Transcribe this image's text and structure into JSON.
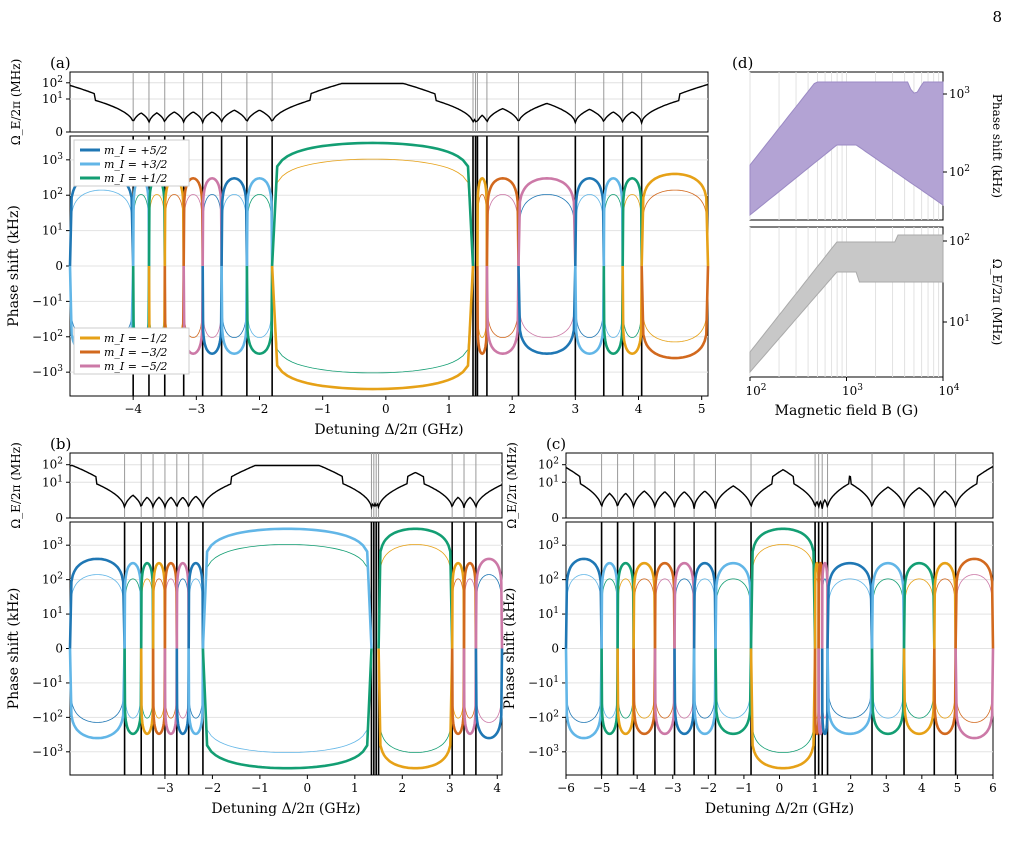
{
  "page_number": "8",
  "legend": {
    "series": [
      {
        "name": "m_I = +5/2",
        "color": "#1f77b4"
      },
      {
        "name": "m_I = +3/2",
        "color": "#62b6e7"
      },
      {
        "name": "m_I = +1/2",
        "color": "#139e73"
      },
      {
        "name": "m_I = −1/2",
        "color": "#e6a117"
      },
      {
        "name": "m_I = −3/2",
        "color": "#d2691e"
      },
      {
        "name": "m_I = −5/2",
        "color": "#cc79a7"
      }
    ]
  },
  "chart_data": [
    {
      "panel": "(a)",
      "type": "line",
      "xlabel": "Detuning Δ/2π (GHz)",
      "ylabel_top": "Ω_E/2π (MHz)",
      "ylabel": "Phase shift (kHz)",
      "xlim": [
        -5,
        5.1
      ],
      "xticks": [
        -4,
        -3,
        -2,
        -1,
        0,
        1,
        2,
        3,
        4,
        5
      ],
      "top_yticks": [
        "10^2",
        "10^1",
        "0"
      ],
      "yticks": [
        "10^3",
        "10^2",
        "10^1",
        "0",
        "−10^1",
        "−10^2",
        "−10^3"
      ],
      "resonances": [
        -4.0,
        -3.75,
        -3.5,
        -3.2,
        -2.9,
        -2.6,
        -2.2,
        -1.8,
        1.38,
        1.42,
        1.45,
        1.6,
        2.1,
        3.0,
        3.45,
        3.75,
        4.05
      ],
      "axis_scale": "symlog"
    },
    {
      "panel": "(b)",
      "type": "line",
      "xlabel": "Detuning Δ/2π (GHz)",
      "ylabel_top": "Ω_E/2π (MHz)",
      "ylabel": "Phase shift (kHz)",
      "xticks": [
        "−3",
        "−2",
        "−1",
        "0",
        "1",
        "2",
        "3",
        "4"
      ],
      "top_yticks": [
        "10^2",
        "10^1",
        "0"
      ],
      "yticks": [
        "10^3",
        "10^2",
        "10^1",
        "0",
        "−10^1",
        "−10^2",
        "−10^3"
      ],
      "axis_scale": "symlog"
    },
    {
      "panel": "(c)",
      "type": "line",
      "xlabel": "Detuning Δ/2π (GHz)",
      "ylabel_top": "Ω_E/2π (MHz)",
      "ylabel": "Phase shift (kHz)",
      "xlim": [
        -6,
        6
      ],
      "xticks": [
        -6,
        -5,
        -4,
        -3,
        -2,
        -1,
        0,
        1,
        2,
        3,
        4,
        5,
        6
      ],
      "top_yticks": [
        "10^2",
        "10^1",
        "0"
      ],
      "yticks": [
        "10^3",
        "10^2",
        "10^1",
        "0",
        "−10^1",
        "−10^2",
        "−10^3"
      ],
      "resonances": [
        -5.0,
        -4.55,
        -4.1,
        -3.5,
        -2.95,
        -2.4,
        -1.8,
        -0.8,
        1.0,
        1.1,
        1.2,
        1.35,
        2.6,
        3.5,
        4.35,
        4.95
      ],
      "axis_scale": "symlog"
    },
    {
      "panel": "(d)",
      "type": "area",
      "xlabel": "Magnetic field B (G)",
      "ylabel_top": "Phase shift (kHz)",
      "ylabel_bottom": "Ω_E/2π (MHz)",
      "xlim_log": [
        100,
        10000
      ],
      "xticks": [
        "10^2",
        "10^3",
        "10^4"
      ],
      "top_yticks": [
        "10^3",
        "10^2"
      ],
      "bottom_yticks": [
        "10^2",
        "10^1"
      ],
      "fill_colors": [
        "#b3a3d4",
        "#c8c8c8"
      ]
    }
  ]
}
